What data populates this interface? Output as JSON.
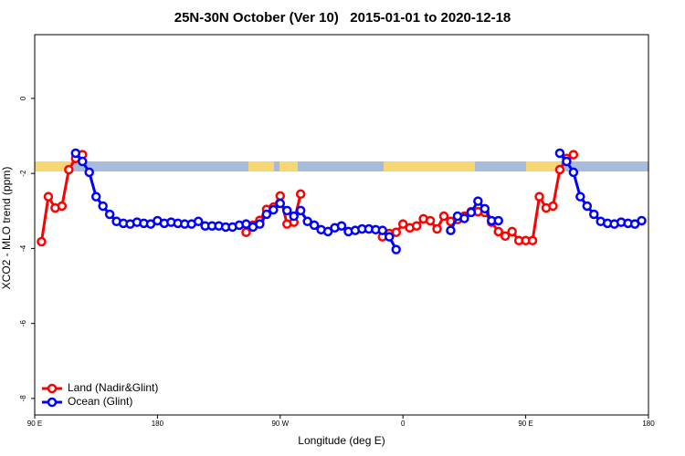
{
  "chart_data": {
    "type": "line",
    "title": "25N-30N October (Ver 10)   2015-01-01 to 2020-12-18",
    "x_label": "Longitude (deg E)",
    "y_label": "XCO2 - MLO trend (ppm)",
    "xlim": [
      90,
      540
    ],
    "xticks": [
      {
        "value": 90,
        "label": "90 E"
      },
      180,
      {
        "value": 270,
        "label": "90 W"
      },
      {
        "value": 360,
        "label": "0"
      },
      {
        "value": 450,
        "label": "90 E"
      },
      {
        "value": 540,
        "label": "180"
      }
    ],
    "ylim": [
      -8.44,
      1.7
    ],
    "yticks": [
      0,
      -2,
      -4,
      -6,
      -8
    ],
    "legend": "bottom-left",
    "series": [
      {
        "name": "Land (Nadir&Glint)",
        "color": "#ff0000",
        "x": [
          95,
          100,
          105,
          110,
          115,
          120,
          125,
          185,
          245,
          250,
          255,
          260,
          265,
          270,
          275,
          280,
          285,
          315,
          345,
          350,
          355,
          360,
          365,
          370,
          375,
          380,
          385,
          390,
          395,
          400,
          405,
          410,
          415,
          420,
          425,
          430,
          435,
          440,
          445,
          450,
          455,
          460,
          465,
          470,
          475,
          480,
          485
        ],
        "values": [
          -3.82,
          -2.62,
          -2.92,
          -2.87,
          -1.9,
          -1.6,
          -1.5,
          null,
          -3.57,
          -3.38,
          -3.25,
          -2.96,
          -2.9,
          -2.6,
          -3.35,
          -3.3,
          -2.55,
          null,
          -3.69,
          -3.6,
          -3.57,
          -3.35,
          -3.45,
          -3.4,
          -3.21,
          -3.26,
          -3.48,
          -3.14,
          -3.28,
          -3.23,
          -3.14,
          -3.02,
          -3.02,
          -3.04,
          -3.3,
          -3.55,
          -3.67,
          -3.55,
          -3.79,
          -3.79,
          -3.79,
          -2.62,
          -2.92,
          -2.87,
          -1.9,
          -1.6,
          -1.5
        ]
      },
      {
        "name": "Ocean (Glint)",
        "color": "#0000ff",
        "x": [
          120,
          125,
          130,
          135,
          140,
          145,
          150,
          155,
          160,
          165,
          170,
          175,
          180,
          185,
          190,
          195,
          200,
          205,
          210,
          215,
          220,
          225,
          230,
          235,
          240,
          245,
          250,
          255,
          260,
          265,
          270,
          275,
          280,
          285,
          290,
          295,
          300,
          305,
          310,
          315,
          320,
          325,
          330,
          335,
          340,
          345,
          350,
          355,
          375,
          395,
          400,
          405,
          410,
          415,
          420,
          425,
          430,
          450,
          475,
          480,
          485,
          490,
          495,
          500,
          505,
          510,
          515,
          520,
          525,
          530,
          535
        ],
        "values": [
          -1.46,
          -1.68,
          -1.97,
          -2.62,
          -2.87,
          -3.09,
          -3.28,
          -3.33,
          -3.35,
          -3.3,
          -3.33,
          -3.35,
          -3.26,
          -3.33,
          -3.3,
          -3.33,
          -3.35,
          -3.35,
          -3.28,
          -3.4,
          -3.4,
          -3.4,
          -3.43,
          -3.43,
          -3.38,
          -3.35,
          -3.43,
          -3.35,
          -3.09,
          -2.97,
          -2.8,
          -2.99,
          -3.14,
          -2.99,
          -3.28,
          -3.38,
          -3.5,
          -3.55,
          -3.45,
          -3.4,
          -3.55,
          -3.52,
          -3.48,
          -3.48,
          -3.5,
          -3.52,
          -3.69,
          -4.03,
          null,
          -3.52,
          -3.14,
          -3.2,
          -3.04,
          -2.74,
          -2.94,
          -3.26,
          -3.26,
          null,
          -1.46,
          -1.68,
          -1.97,
          -2.62,
          -2.87,
          -3.09,
          -3.28,
          -3.33,
          -3.35,
          -3.3,
          -3.33,
          -3.35,
          -3.26
        ]
      }
    ]
  }
}
